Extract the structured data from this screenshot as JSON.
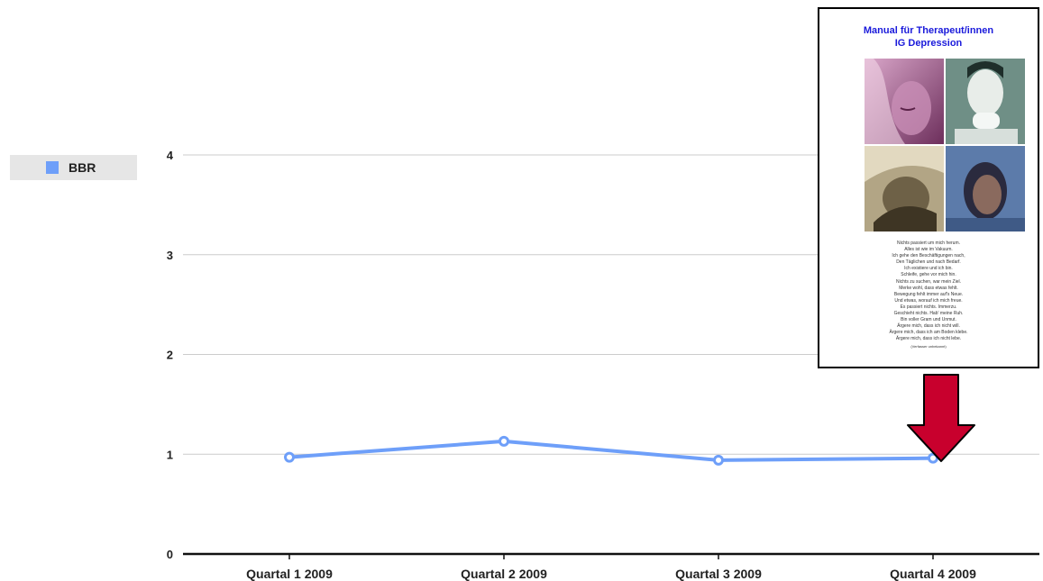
{
  "chart_data": {
    "type": "line",
    "categories": [
      "Quartal 1 2009",
      "Quartal 2 2009",
      "Quartal 3 2009",
      "Quartal 4 2009"
    ],
    "series": [
      {
        "name": "BBR",
        "values": [
          0.97,
          1.13,
          0.94,
          0.96
        ],
        "color": "#6e9ff9"
      }
    ],
    "ylim": [
      0,
      4
    ],
    "yticks": [
      "0",
      "1",
      "2",
      "3",
      "4"
    ],
    "title": "",
    "xlabel": "",
    "ylabel": "",
    "grid": true,
    "legend": "left"
  },
  "inset": {
    "title_lines": [
      "Manual für Therapeut/innen",
      "IG Depression"
    ],
    "title_color": "#1a1adb",
    "photo_icons": [
      "woman-photo-icon",
      "man-photo-icon",
      "sad-man-photo-icon",
      "woman-photo-icon"
    ],
    "poem_lines": [
      "Nichts passiert um mich herum.",
      "Alles ist wie im Vakuum.",
      "Ich gehe den Beschäftigungen nach,",
      "Den Täglichen und nach Bedarf.",
      "Ich existiere und ich bin.",
      "Schleife, gehe vor mich hin.",
      "Nichts zu suchen, war mein Ziel.",
      "Merke wohl, dass etwas fehlt.",
      "Bewegung fehlt immer auf's Neue.",
      "Und etwas, worauf ich mich freue.",
      "Es passiert nichts. Immerzu.",
      "Geschieht nichts. Hab' meine Ruh.",
      "Bin voller Gram und Unmut.",
      "Ärgere mich, dass ich nicht will.",
      "Ärgere mich, dass ich am Boden klebe.",
      "Ärgere mich, dass ich nicht lebe."
    ],
    "poem_credit": "(Verfasser unbekannt)"
  },
  "arrow": {
    "icon": "down-arrow-icon",
    "color": "#c8002d"
  }
}
